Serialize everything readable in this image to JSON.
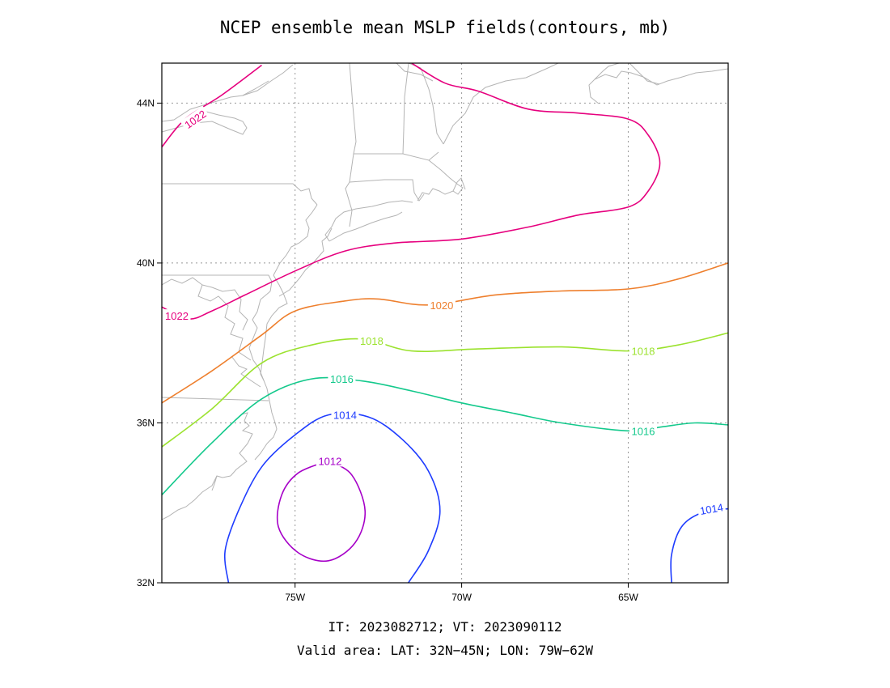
{
  "title": "NCEP ensemble mean MSLP fields(contours, mb)",
  "footer": {
    "line1": "IT: 2023082712; VT: 2023090112",
    "line2": "Valid area: LAT: 32N−45N; LON: 79W−62W"
  },
  "map": {
    "lon_range": [
      -79,
      -62
    ],
    "lat_range": [
      32,
      45
    ],
    "x_ticks": [
      {
        "lon": -75,
        "label": "75W"
      },
      {
        "lon": -70,
        "label": "70W"
      },
      {
        "lon": -65,
        "label": "65W"
      }
    ],
    "y_ticks": [
      {
        "lat": 32,
        "label": "32N"
      },
      {
        "lat": 36,
        "label": "36N"
      },
      {
        "lat": 40,
        "label": "40N"
      },
      {
        "lat": 44,
        "label": "44N"
      }
    ],
    "gridlines": true,
    "coastline_color": "#b4b4b4"
  },
  "contours": [
    {
      "level": 1022,
      "color": "#e6007e",
      "lines": [
        [
          [
            -79.0,
            42.9
          ],
          [
            -78.3,
            43.6
          ],
          [
            -77.2,
            44.2
          ],
          [
            -76.0,
            44.95
          ]
        ],
        [
          [
            -79.0,
            38.9
          ],
          [
            -78.2,
            38.6
          ],
          [
            -77.5,
            38.8
          ],
          [
            -76.5,
            39.2
          ],
          [
            -75.0,
            39.8
          ],
          [
            -73.5,
            40.3
          ],
          [
            -72.0,
            40.5
          ],
          [
            -70.0,
            40.6
          ],
          [
            -68.0,
            40.9
          ],
          [
            -66.5,
            41.2
          ],
          [
            -65.0,
            41.4
          ],
          [
            -64.4,
            41.8
          ],
          [
            -64.05,
            42.5
          ],
          [
            -64.4,
            43.2
          ],
          [
            -65.0,
            43.6
          ],
          [
            -66.5,
            43.75
          ],
          [
            -68.0,
            43.85
          ],
          [
            -69.5,
            44.3
          ],
          [
            -70.5,
            44.5
          ],
          [
            -71.5,
            45.0
          ]
        ]
      ],
      "labels": [
        {
          "text": "1022",
          "lon": -78.0,
          "lat": 43.6,
          "angle": -35
        },
        {
          "text": "1022",
          "lon": -78.55,
          "lat": 38.68,
          "angle": 0
        }
      ]
    },
    {
      "level": 1020,
      "color": "#ee7f2d",
      "lines": [
        [
          [
            -79.0,
            36.5
          ],
          [
            -77.5,
            37.3
          ],
          [
            -76.0,
            38.2
          ],
          [
            -75.0,
            38.8
          ],
          [
            -73.5,
            39.05
          ],
          [
            -72.5,
            39.1
          ],
          [
            -71.0,
            38.95
          ],
          [
            -69.0,
            39.2
          ],
          [
            -67.0,
            39.3
          ],
          [
            -65.0,
            39.35
          ],
          [
            -63.5,
            39.6
          ],
          [
            -62.0,
            40.0
          ]
        ]
      ],
      "labels": [
        {
          "text": "1020",
          "lon": -70.6,
          "lat": 38.95,
          "angle": 0
        }
      ]
    },
    {
      "level": 1018,
      "color": "#9be22e",
      "lines": [
        [
          [
            -79.0,
            35.4
          ],
          [
            -77.5,
            36.35
          ],
          [
            -76.0,
            37.5
          ],
          [
            -74.5,
            37.95
          ],
          [
            -73.0,
            38.1
          ],
          [
            -71.5,
            37.8
          ],
          [
            -69.5,
            37.85
          ],
          [
            -67.0,
            37.9
          ],
          [
            -65.0,
            37.8
          ],
          [
            -63.5,
            37.95
          ],
          [
            -62.0,
            38.25
          ]
        ]
      ],
      "labels": [
        {
          "text": "1018",
          "lon": -72.7,
          "lat": 38.05,
          "angle": 0
        },
        {
          "text": "1018",
          "lon": -64.55,
          "lat": 37.8,
          "angle": 0
        }
      ]
    },
    {
      "level": 1016,
      "color": "#14c98c",
      "lines": [
        [
          [
            -79.0,
            34.2
          ],
          [
            -77.5,
            35.5
          ],
          [
            -76.0,
            36.6
          ],
          [
            -74.5,
            37.1
          ],
          [
            -73.0,
            37.05
          ],
          [
            -71.5,
            36.8
          ],
          [
            -70.0,
            36.5
          ],
          [
            -68.5,
            36.25
          ],
          [
            -67.0,
            36.0
          ],
          [
            -65.0,
            35.8
          ],
          [
            -64.0,
            35.9
          ],
          [
            -63.0,
            36.0
          ],
          [
            -62.0,
            35.95
          ]
        ]
      ],
      "labels": [
        {
          "text": "1016",
          "lon": -73.6,
          "lat": 37.1,
          "angle": 0
        },
        {
          "text": "1016",
          "lon": -64.55,
          "lat": 35.8,
          "angle": 0
        }
      ]
    },
    {
      "level": 1014,
      "color": "#1e3cff",
      "lines": [
        [
          [
            -77.0,
            32.0
          ],
          [
            -77.1,
            32.8
          ],
          [
            -76.7,
            33.8
          ],
          [
            -76.0,
            34.9
          ],
          [
            -75.0,
            35.7
          ],
          [
            -74.0,
            36.2
          ],
          [
            -72.8,
            36.15
          ],
          [
            -71.8,
            35.6
          ],
          [
            -71.0,
            34.8
          ],
          [
            -70.65,
            33.8
          ],
          [
            -71.0,
            32.8
          ],
          [
            -71.6,
            32.0
          ]
        ],
        [
          [
            -63.7,
            32.0
          ],
          [
            -63.7,
            32.7
          ],
          [
            -63.4,
            33.4
          ],
          [
            -62.8,
            33.75
          ],
          [
            -62.0,
            33.85
          ]
        ]
      ],
      "labels": [
        {
          "text": "1014",
          "lon": -73.5,
          "lat": 36.2,
          "angle": 0
        },
        {
          "text": "1014",
          "lon": -62.5,
          "lat": 33.85,
          "angle": -10
        }
      ]
    },
    {
      "level": 1012,
      "color": "#a600c8",
      "lines": [
        [
          [
            -74.0,
            35.05
          ],
          [
            -73.3,
            34.7
          ],
          [
            -72.9,
            33.8
          ],
          [
            -73.2,
            33.0
          ],
          [
            -74.0,
            32.55
          ],
          [
            -74.9,
            32.75
          ],
          [
            -75.5,
            33.4
          ],
          [
            -75.4,
            34.2
          ],
          [
            -74.9,
            34.75
          ],
          [
            -74.0,
            35.05
          ]
        ]
      ],
      "labels": [
        {
          "text": "1012",
          "lon": -73.95,
          "lat": 35.05,
          "angle": 0
        }
      ]
    }
  ]
}
